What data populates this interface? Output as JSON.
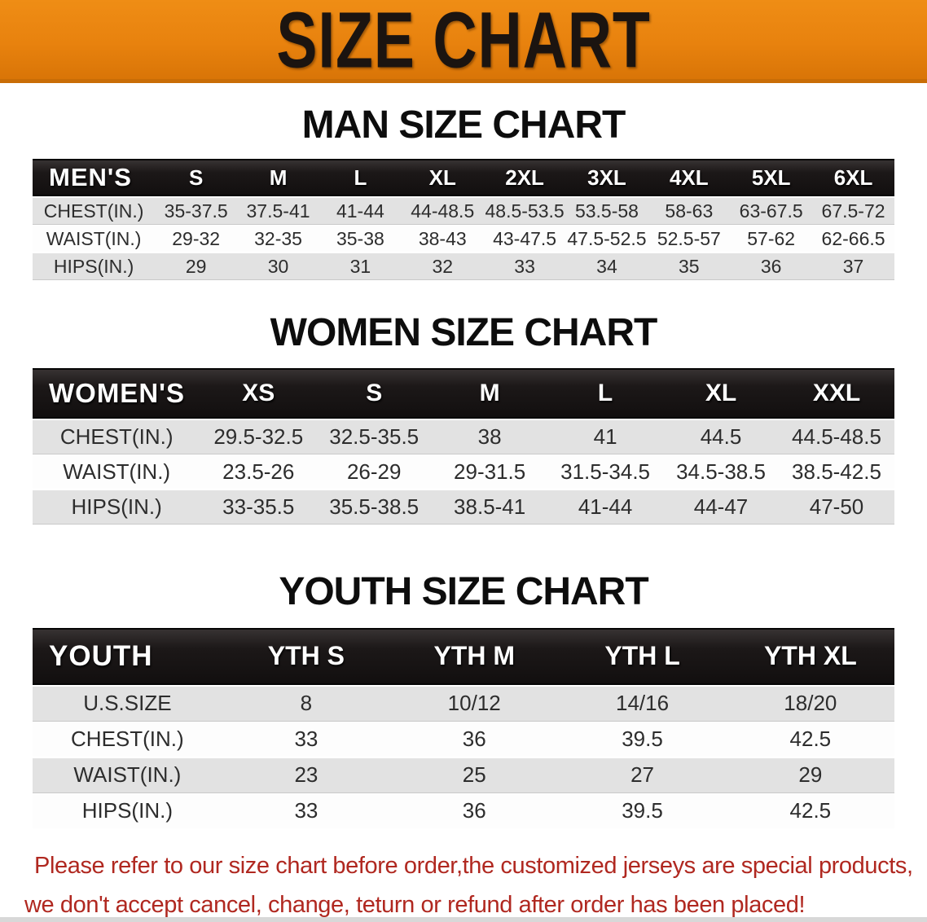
{
  "banner": {
    "title": "SIZE CHART",
    "bg_color": "#e8820e",
    "text_color": "#1b1410"
  },
  "sections": [
    {
      "title": "MAN SIZE CHART",
      "table": {
        "header_label": "MEN'S",
        "columns": [
          "S",
          "M",
          "L",
          "XL",
          "2XL",
          "3XL",
          "4XL",
          "5XL",
          "6XL"
        ],
        "rows": [
          {
            "label": "CHEST(IN.)",
            "values": [
              "35-37.5",
              "37.5-41",
              "41-44",
              "44-48.5",
              "48.5-53.5",
              "53.5-58",
              "58-63",
              "63-67.5",
              "67.5-72"
            ]
          },
          {
            "label": "WAIST(IN.)",
            "values": [
              "29-32",
              "32-35",
              "35-38",
              "38-43",
              "43-47.5",
              "47.5-52.5",
              "52.5-57",
              "57-62",
              "62-66.5"
            ]
          },
          {
            "label": "HIPS(IN.)",
            "values": [
              "29",
              "30",
              "31",
              "32",
              "33",
              "34",
              "35",
              "36",
              "37"
            ]
          }
        ]
      }
    },
    {
      "title": "WOMEN SIZE CHART",
      "table": {
        "header_label": "WOMEN'S",
        "columns": [
          "XS",
          "S",
          "M",
          "L",
          "XL",
          "XXL"
        ],
        "rows": [
          {
            "label": "CHEST(IN.)",
            "values": [
              "29.5-32.5",
              "32.5-35.5",
              "38",
              "41",
              "44.5",
              "44.5-48.5"
            ]
          },
          {
            "label": "WAIST(IN.)",
            "values": [
              "23.5-26",
              "26-29",
              "29-31.5",
              "31.5-34.5",
              "34.5-38.5",
              "38.5-42.5"
            ]
          },
          {
            "label": "HIPS(IN.)",
            "values": [
              "33-35.5",
              "35.5-38.5",
              "38.5-41",
              "41-44",
              "44-47",
              "47-50"
            ]
          }
        ]
      }
    },
    {
      "title": "YOUTH SIZE CHART",
      "table": {
        "header_label": "YOUTH",
        "columns": [
          "YTH S",
          "YTH M",
          "YTH L",
          "YTH XL"
        ],
        "rows": [
          {
            "label": "U.S.SIZE",
            "values": [
              "8",
              "10/12",
              "14/16",
              "18/20"
            ]
          },
          {
            "label": "CHEST(IN.)",
            "values": [
              "33",
              "36",
              "39.5",
              "42.5"
            ]
          },
          {
            "label": "WAIST(IN.)",
            "values": [
              "23",
              "25",
              "27",
              "29"
            ]
          },
          {
            "label": "HIPS(IN.)",
            "values": [
              "33",
              "36",
              "39.5",
              "42.5"
            ]
          }
        ]
      }
    }
  ],
  "disclaimer": {
    "line1": "Please refer to our size chart before order,the customized jerseys are special products,",
    "line2": "we don't accept cancel, change, teturn or refund after order has been placed!",
    "color": "#b02820"
  }
}
